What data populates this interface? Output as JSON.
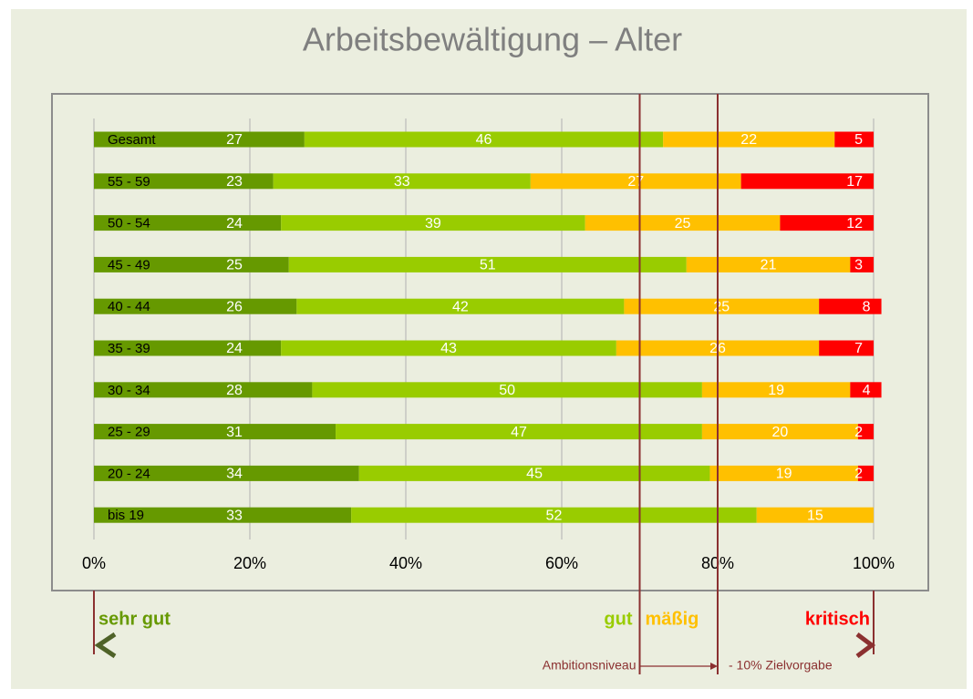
{
  "chart_data": {
    "type": "stacked_bar_horizontal",
    "title": "Arbeitsbewältigung – Alter",
    "categories": [
      "Gesamt",
      "55 - 59",
      "50 - 54",
      "45 - 49",
      "40 - 44",
      "35 - 39",
      "30 - 34",
      "25 - 29",
      "20 - 24",
      "bis 19"
    ],
    "series": [
      {
        "name": "sehr gut",
        "color": "#669900",
        "values": [
          27,
          23,
          24,
          25,
          26,
          24,
          28,
          31,
          34,
          33
        ]
      },
      {
        "name": "gut",
        "color": "#99cc00",
        "values": [
          46,
          33,
          39,
          51,
          42,
          43,
          50,
          47,
          45,
          52
        ]
      },
      {
        "name": "mäßig",
        "color": "#ffc000",
        "values": [
          22,
          27,
          25,
          21,
          25,
          26,
          19,
          20,
          19,
          15
        ]
      },
      {
        "name": "kritisch",
        "color": "#ff0000",
        "values": [
          5,
          17,
          12,
          3,
          8,
          7,
          4,
          2,
          2,
          null
        ]
      }
    ],
    "xlim": [
      0,
      100
    ],
    "xticks": [
      {
        "value": 0,
        "label": "0%"
      },
      {
        "value": 20,
        "label": "20%"
      },
      {
        "value": 40,
        "label": "40%"
      },
      {
        "value": 60,
        "label": "60%"
      },
      {
        "value": 80,
        "label": "80%"
      },
      {
        "value": 100,
        "label": "100%"
      }
    ],
    "grid": true,
    "reference_lines": [
      70,
      80
    ],
    "annotations": [
      "Ambitionsniveau",
      "- 10% Zielvorgabe"
    ]
  }
}
